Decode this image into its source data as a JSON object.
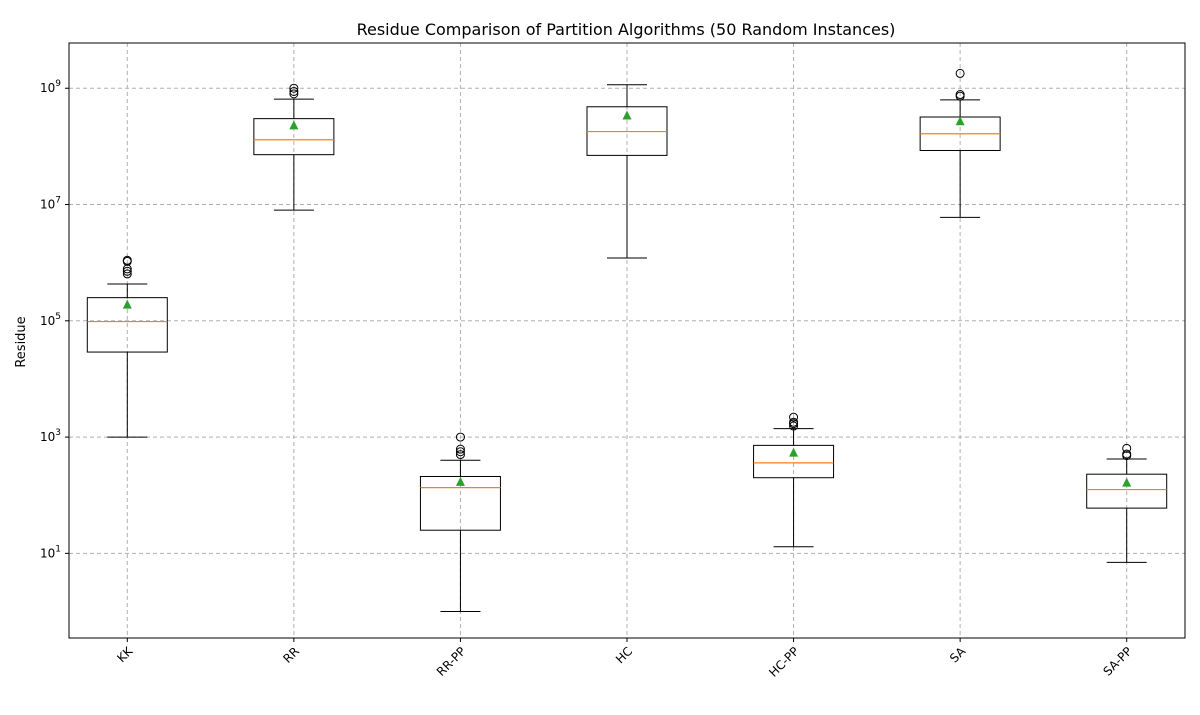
{
  "chart_data": {
    "type": "box",
    "title": "Residue Comparison of Partition Algorithms (50 Random Instances)",
    "xlabel": "",
    "ylabel": "Residue",
    "y_scale": "log",
    "ylim": [
      0.35,
      6000000000
    ],
    "grid": true,
    "y_ticks": [
      {
        "value": 10,
        "base": "10",
        "exp": "1"
      },
      {
        "value": 1000,
        "base": "10",
        "exp": "3"
      },
      {
        "value": 100000,
        "base": "10",
        "exp": "5"
      },
      {
        "value": 10000000,
        "base": "10",
        "exp": "7"
      },
      {
        "value": 1000000000,
        "base": "10",
        "exp": "9"
      }
    ],
    "categories": [
      "KK",
      "RR",
      "RR-PP",
      "HC",
      "HC-PP",
      "SA",
      "SA-PP"
    ],
    "boxes": [
      {
        "whisker_low": 1000,
        "q1": 29000,
        "median": 97000,
        "q3": 250000,
        "whisker_high": 430000,
        "mean": 190000,
        "outliers": [
          640000,
          710000,
          780000,
          1050000,
          1100000
        ]
      },
      {
        "whisker_low": 8000000,
        "q1": 72000000,
        "median": 130000000,
        "q3": 300000000,
        "whisker_high": 650000000,
        "mean": 230000000,
        "outliers": [
          800000000,
          880000000,
          1000000000
        ]
      },
      {
        "whisker_low": 1,
        "q1": 25,
        "median": 135,
        "q3": 210,
        "whisker_high": 400,
        "mean": 170,
        "outliers": [
          500,
          560,
          620,
          1000
        ]
      },
      {
        "whisker_low": 1200000,
        "q1": 70000000,
        "median": 180000000,
        "q3": 480000000,
        "whisker_high": 1150000000,
        "mean": 340000000,
        "outliers": []
      },
      {
        "whisker_low": 13,
        "q1": 200,
        "median": 360,
        "q3": 720,
        "whisker_high": 1400,
        "mean": 540,
        "outliers": [
          1550,
          1700,
          1800,
          2200
        ]
      },
      {
        "whisker_low": 6000000,
        "q1": 85000000,
        "median": 165000000,
        "q3": 320000000,
        "whisker_high": 630000000,
        "mean": 270000000,
        "outliers": [
          730000000,
          780000000,
          1800000000
        ]
      },
      {
        "whisker_low": 7,
        "q1": 60,
        "median": 125,
        "q3": 230,
        "whisker_high": 420,
        "mean": 165,
        "outliers": [
          480,
          510,
          640
        ]
      }
    ],
    "colors": {
      "box": "#000000",
      "median": "#ff7f0e",
      "mean": "#2ca02c",
      "grid": "#b0b0b0"
    }
  }
}
